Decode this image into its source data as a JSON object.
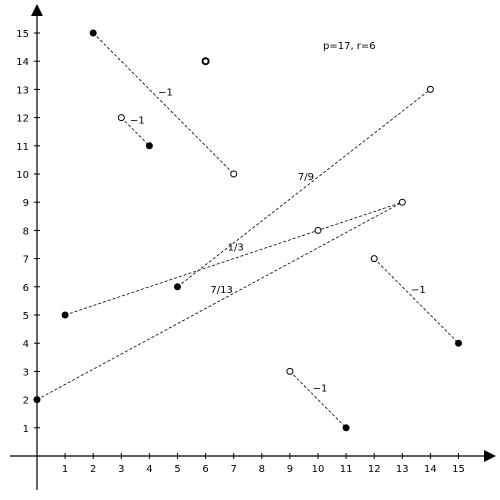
{
  "chart_data": {
    "type": "scatter",
    "title": "p=17, r=6",
    "xlim": [
      0,
      15
    ],
    "ylim": [
      0,
      15
    ],
    "x_ticks": [
      "1",
      "2",
      "3",
      "4",
      "5",
      "6",
      "7",
      "8",
      "9",
      "10",
      "11",
      "12",
      "13",
      "14",
      "15"
    ],
    "y_ticks": [
      "1",
      "2",
      "3",
      "4",
      "5",
      "6",
      "7",
      "8",
      "9",
      "10",
      "11",
      "12",
      "13",
      "14",
      "15"
    ],
    "grid": false,
    "points": [
      {
        "x": 0,
        "y": 2,
        "style": "filled"
      },
      {
        "x": 1,
        "y": 5,
        "style": "filled"
      },
      {
        "x": 2,
        "y": 15,
        "style": "filled"
      },
      {
        "x": 3,
        "y": 12,
        "style": "open"
      },
      {
        "x": 4,
        "y": 11,
        "style": "filled"
      },
      {
        "x": 5,
        "y": 6,
        "style": "filled"
      },
      {
        "x": 6,
        "y": 14,
        "style": "open-bold"
      },
      {
        "x": 7,
        "y": 10,
        "style": "open"
      },
      {
        "x": 9,
        "y": 3,
        "style": "open"
      },
      {
        "x": 10,
        "y": 8,
        "style": "open"
      },
      {
        "x": 11,
        "y": 1,
        "style": "filled"
      },
      {
        "x": 12,
        "y": 7,
        "style": "open"
      },
      {
        "x": 13,
        "y": 9,
        "style": "open"
      },
      {
        "x": 14,
        "y": 13,
        "style": "open"
      },
      {
        "x": 15,
        "y": 4,
        "style": "filled"
      }
    ],
    "segments": [
      {
        "from": [
          2,
          15
        ],
        "to": [
          7,
          10
        ],
        "label": "−1"
      },
      {
        "from": [
          3,
          12
        ],
        "to": [
          4,
          11
        ],
        "label": "−1"
      },
      {
        "from": [
          5,
          6
        ],
        "to": [
          14,
          13
        ],
        "label": "7/9"
      },
      {
        "from": [
          1,
          5
        ],
        "to": [
          13,
          9
        ],
        "label": "1/3"
      },
      {
        "from": [
          0,
          2
        ],
        "to": [
          13,
          9
        ],
        "label": "7/13"
      },
      {
        "from": [
          12,
          7
        ],
        "to": [
          15,
          4
        ],
        "label": "−1"
      },
      {
        "from": [
          9,
          3
        ],
        "to": [
          11,
          1
        ],
        "label": "−1"
      }
    ]
  }
}
